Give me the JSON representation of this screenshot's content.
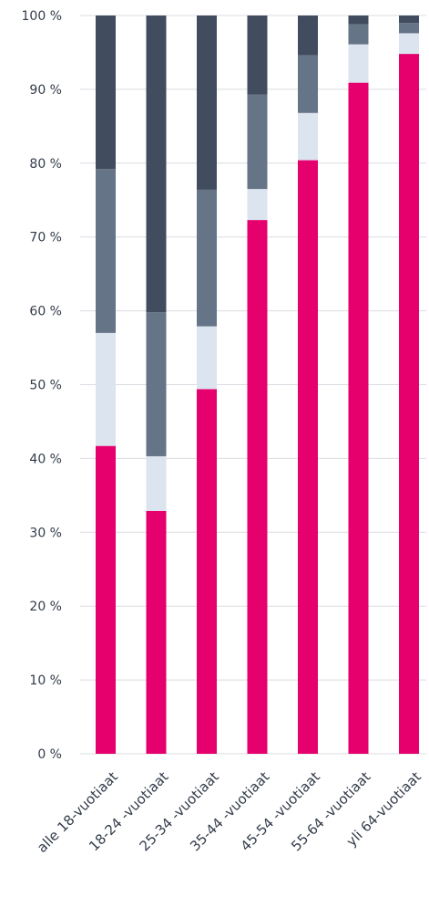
{
  "chart_data": {
    "type": "bar",
    "stacked": true,
    "orientation": "vertical",
    "categories": [
      "alle 18-vuotiaat",
      "18-24 -vuotiaat",
      "25-34 -vuotiaat",
      "35-44 -vuotiaat",
      "45-54 -vuotiaat",
      "55-64 -vuotiaat",
      "yli 64-vuotiaat"
    ],
    "series": [
      {
        "color": "#e6006e",
        "values": [
          41.7,
          32.9,
          49.4,
          72.3,
          80.4,
          90.9,
          94.8
        ]
      },
      {
        "color": "#dbe4ef",
        "values": [
          15.3,
          7.4,
          8.5,
          4.2,
          6.4,
          5.2,
          2.8
        ]
      },
      {
        "color": "#667487",
        "values": [
          22.2,
          19.5,
          18.5,
          12.8,
          7.8,
          2.7,
          1.4
        ]
      },
      {
        "color": "#414d5e",
        "values": [
          20.8,
          40.2,
          23.6,
          10.7,
          5.4,
          1.2,
          1.0
        ]
      }
    ],
    "yticks": [
      0,
      10,
      20,
      30,
      40,
      50,
      60,
      70,
      80,
      90,
      100
    ],
    "ytick_labels": [
      "0 %",
      "10 %",
      "20 %",
      "30 %",
      "40 %",
      "50 %",
      "60 %",
      "70 %",
      "80 %",
      "90 %",
      "100 %"
    ],
    "ylim": [
      0,
      100
    ],
    "title": "",
    "xlabel": "",
    "ylabel": "",
    "grid": true,
    "legend": "none"
  }
}
